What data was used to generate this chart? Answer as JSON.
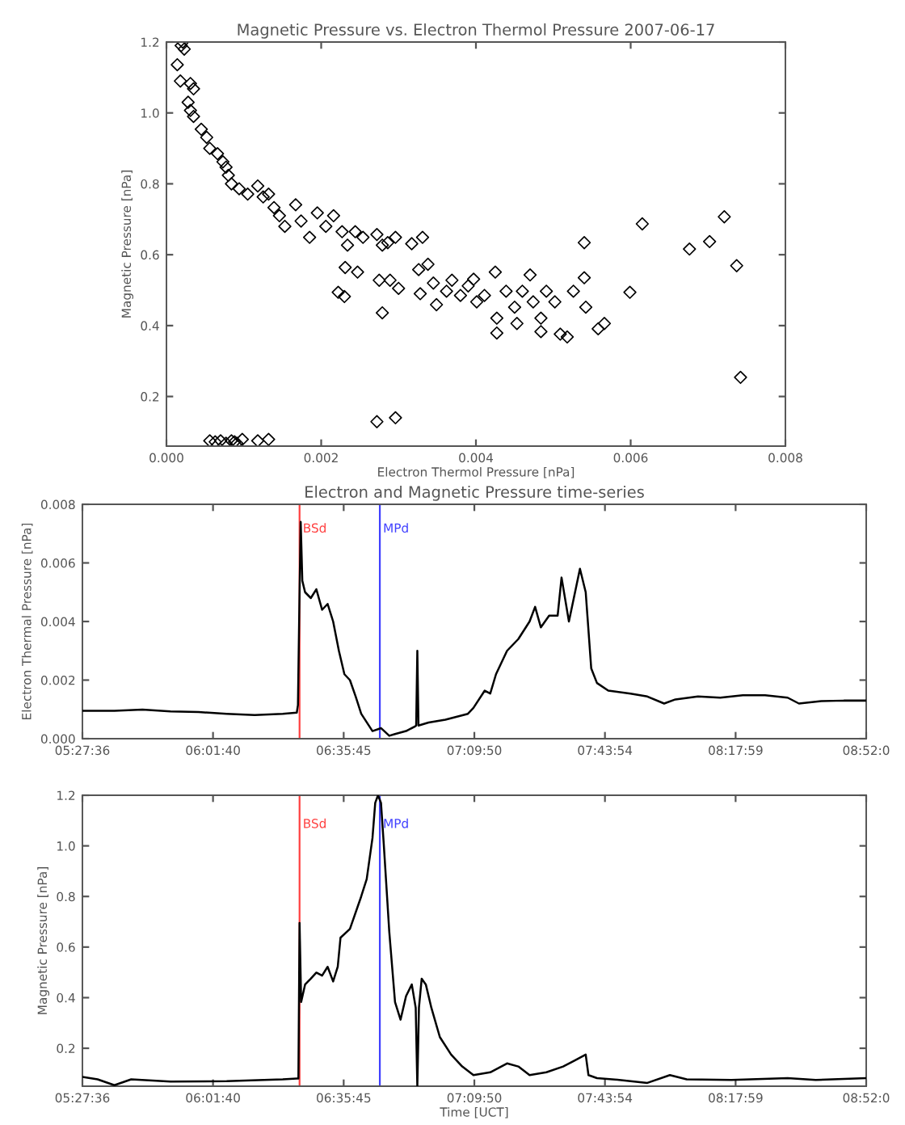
{
  "chart_data": [
    {
      "type": "scatter",
      "title": "Magnetic Pressure vs. Electron Thermol Pressure 2007-06-17",
      "xlabel": "Electron Thermol Pressure [nPa]",
      "ylabel": "Magnetic Pressure [nPa]",
      "marker": "diamond",
      "grid": false,
      "xlim": [
        0,
        0.008
      ],
      "ylim": [
        0.06,
        1.2
      ],
      "xticks": [
        {
          "value": 0,
          "label": "0.000"
        },
        {
          "value": 0.002,
          "label": "0.002"
        },
        {
          "value": 0.004,
          "label": "0.004"
        },
        {
          "value": 0.006,
          "label": "0.006"
        },
        {
          "value": 0.008,
          "label": "0.008"
        }
      ],
      "yticks": [
        0.2,
        0.4,
        0.6,
        0.8,
        {
          "value": 1.0,
          "label": "1.0"
        },
        1.2
      ],
      "series": [
        {
          "color": "#000000",
          "x": [
            0.00021,
            0.00019,
            0.00023,
            0.00014,
            0.00018,
            0.00031,
            0.00035,
            0.00028,
            0.00031,
            0.00035,
            0.00045,
            0.00052,
            0.00056,
            0.00066,
            0.00073,
            0.00077,
            0.0008,
            0.00084,
            0.00094,
            0.00105,
            0.00118,
            0.00125,
            0.00132,
            0.00139,
            0.00146,
            0.00153,
            0.00167,
            0.00174,
            0.00185,
            0.00195,
            0.00206,
            0.00216,
            0.00227,
            0.00234,
            0.00244,
            0.00254,
            0.00272,
            0.00279,
            0.00286,
            0.00296,
            0.00317,
            0.00331,
            0.00222,
            0.0023,
            0.00231,
            0.00247,
            0.00275,
            0.00279,
            0.00289,
            0.003,
            0.00326,
            0.00338,
            0.00328,
            0.00345,
            0.00349,
            0.00362,
            0.00369,
            0.0038,
            0.0039,
            0.00397,
            0.00401,
            0.00411,
            0.00425,
            0.00427,
            0.00427,
            0.00439,
            0.0045,
            0.00453,
            0.0046,
            0.0047,
            0.00474,
            0.00484,
            0.00484,
            0.00491,
            0.00502,
            0.00509,
            0.00518,
            0.00526,
            0.0054,
            0.0054,
            0.00542,
            0.00558,
            0.00566,
            0.00599,
            0.00615,
            0.00676,
            0.00702,
            0.00721,
            0.00737,
            0.00742,
            0.00272,
            0.00296,
            0.0007,
            0.00084,
            0.00098,
            0.00118,
            0.00132,
            0.00056,
            0.00077,
            0.00091,
            0.00063,
            0.00088
          ],
          "values": [
            1.2,
            1.19,
            1.18,
            1.136,
            1.09,
            1.083,
            1.068,
            1.03,
            1.007,
            0.99,
            0.954,
            0.931,
            0.9,
            0.885,
            0.862,
            0.847,
            0.824,
            0.8,
            0.786,
            0.771,
            0.794,
            0.763,
            0.771,
            0.733,
            0.71,
            0.68,
            0.741,
            0.695,
            0.649,
            0.718,
            0.68,
            0.71,
            0.665,
            0.627,
            0.665,
            0.649,
            0.657,
            0.627,
            0.634,
            0.649,
            0.631,
            0.649,
            0.494,
            0.482,
            0.564,
            0.551,
            0.528,
            0.436,
            0.528,
            0.505,
            0.558,
            0.573,
            0.49,
            0.52,
            0.459,
            0.497,
            0.528,
            0.485,
            0.512,
            0.531,
            0.467,
            0.485,
            0.551,
            0.421,
            0.379,
            0.497,
            0.452,
            0.406,
            0.497,
            0.543,
            0.467,
            0.421,
            0.383,
            0.497,
            0.467,
            0.376,
            0.368,
            0.497,
            0.634,
            0.535,
            0.452,
            0.391,
            0.406,
            0.494,
            0.687,
            0.616,
            0.637,
            0.707,
            0.569,
            0.254,
            0.129,
            0.14,
            0.075,
            0.075,
            0.079,
            0.075,
            0.079,
            0.075,
            0.068,
            0.068,
            0.072,
            0.072
          ]
        }
      ]
    },
    {
      "type": "line",
      "title": "Electron and Magnetic Pressure time-series",
      "ylabel": "Electron Thermal Pressure [nPa]",
      "grid": false,
      "marker": "none",
      "line_style": "solid",
      "xlim": [
        5.46,
        8.8675
      ],
      "ylim": [
        0,
        0.008
      ],
      "xticks": [
        {
          "value": 5.46,
          "label": "05:27:36"
        },
        {
          "value": 6.027778,
          "label": "06:01:40"
        },
        {
          "value": 6.595833,
          "label": "06:35:45"
        },
        {
          "value": 7.163889,
          "label": "07:09:50"
        },
        {
          "value": 7.731667,
          "label": "07:43:54"
        },
        {
          "value": 8.299722,
          "label": "08:17:59"
        },
        {
          "value": 8.8675,
          "label": "08:52:0"
        }
      ],
      "yticks": [
        {
          "value": 0,
          "label": "0.000"
        },
        0.002,
        0.004,
        0.006,
        {
          "value": 0.008,
          "label": "0.008"
        }
      ],
      "ref_lines": [
        {
          "axis": "x",
          "value": 6.404,
          "label": "BSd",
          "color": "#ff4040"
        },
        {
          "axis": "x",
          "value": 6.753,
          "label": "MPd",
          "color": "#4040ff"
        }
      ],
      "series": [
        {
          "color": "#000000",
          "x": [
            5.46,
            5.599,
            5.721,
            5.843,
            5.965,
            6.087,
            6.209,
            6.331,
            6.392,
            6.397,
            6.404,
            6.409,
            6.416,
            6.428,
            6.453,
            6.477,
            6.502,
            6.526,
            6.55,
            6.575,
            6.599,
            6.623,
            6.648,
            6.672,
            6.721,
            6.758,
            6.794,
            6.819,
            6.867,
            6.904,
            6.911,
            6.916,
            6.921,
            6.965,
            7.038,
            7.136,
            7.16,
            7.209,
            7.233,
            7.258,
            7.306,
            7.355,
            7.404,
            7.428,
            7.453,
            7.489,
            7.526,
            7.543,
            7.575,
            7.623,
            7.648,
            7.672,
            7.697,
            7.746,
            7.843,
            7.916,
            7.989,
            8.038,
            8.136,
            8.233,
            8.331,
            8.428,
            8.526,
            8.575,
            8.672,
            8.77,
            8.8675
          ],
          "values": [
            0.00095,
            0.00095,
            0.00099,
            0.00093,
            0.00091,
            0.00085,
            0.00081,
            0.00085,
            0.00089,
            0.00115,
            0.005,
            0.0074,
            0.00539,
            0.005,
            0.0048,
            0.0051,
            0.0044,
            0.0046,
            0.004,
            0.003,
            0.0022,
            0.002,
            0.00144,
            0.00085,
            0.00026,
            0.00036,
            0.0001,
            0.00016,
            0.00026,
            0.00041,
            0.00045,
            0.003,
            0.00045,
            0.00055,
            0.00065,
            0.00085,
            0.00105,
            0.00164,
            0.00154,
            0.0022,
            0.003,
            0.0034,
            0.004,
            0.0045,
            0.0038,
            0.0042,
            0.0042,
            0.0055,
            0.004,
            0.0058,
            0.005,
            0.0024,
            0.0019,
            0.00164,
            0.00154,
            0.00144,
            0.0012,
            0.00134,
            0.00144,
            0.0014,
            0.00148,
            0.00148,
            0.0014,
            0.0012,
            0.00128,
            0.0013,
            0.0013
          ]
        }
      ]
    },
    {
      "type": "line",
      "xlabel": "Time [UCT]",
      "ylabel": "Magnetic Pressure [nPa]",
      "grid": false,
      "marker": "none",
      "line_style": "solid",
      "xlim": [
        5.46,
        8.8675
      ],
      "ylim": [
        0.05,
        1.2
      ],
      "xticks": [
        {
          "value": 5.46,
          "label": "05:27:36"
        },
        {
          "value": 6.027778,
          "label": "06:01:40"
        },
        {
          "value": 6.595833,
          "label": "06:35:45"
        },
        {
          "value": 7.163889,
          "label": "07:09:50"
        },
        {
          "value": 7.731667,
          "label": "07:43:54"
        },
        {
          "value": 8.299722,
          "label": "08:17:59"
        },
        {
          "value": 8.8675,
          "label": "08:52:0"
        }
      ],
      "yticks": [
        0.2,
        0.4,
        0.6,
        0.8,
        {
          "value": 1.0,
          "label": "1.0"
        },
        1.2
      ],
      "ref_lines": [
        {
          "axis": "x",
          "value": 6.404,
          "label": "BSd",
          "color": "#ff4040"
        },
        {
          "axis": "x",
          "value": 6.753,
          "label": "MPd",
          "color": "#4040ff"
        }
      ],
      "series": [
        {
          "color": "#000000",
          "x": [
            5.46,
            5.526,
            5.599,
            5.672,
            5.843,
            6.087,
            6.331,
            6.392,
            6.399,
            6.404,
            6.411,
            6.428,
            6.453,
            6.477,
            6.502,
            6.526,
            6.55,
            6.57,
            6.582,
            6.623,
            6.672,
            6.696,
            6.721,
            6.733,
            6.745,
            6.758,
            6.77,
            6.794,
            6.819,
            6.843,
            6.867,
            6.892,
            6.909,
            6.916,
            6.923,
            6.935,
            6.953,
            6.977,
            7.014,
            7.063,
            7.111,
            7.16,
            7.233,
            7.306,
            7.355,
            7.404,
            7.477,
            7.55,
            7.599,
            7.648,
            7.66,
            7.697,
            7.794,
            7.916,
            8.014,
            8.087,
            8.282,
            8.526,
            8.648,
            8.8675
          ],
          "values": [
            0.087,
            0.077,
            0.054,
            0.077,
            0.068,
            0.07,
            0.077,
            0.08,
            0.08,
            0.695,
            0.383,
            0.452,
            0.475,
            0.499,
            0.487,
            0.522,
            0.464,
            0.522,
            0.637,
            0.672,
            0.8,
            0.869,
            1.031,
            1.17,
            1.2,
            1.17,
            1.008,
            0.661,
            0.383,
            0.313,
            0.406,
            0.452,
            0.36,
            0.05,
            0.36,
            0.475,
            0.452,
            0.36,
            0.244,
            0.175,
            0.128,
            0.094,
            0.105,
            0.14,
            0.128,
            0.094,
            0.105,
            0.128,
            0.151,
            0.175,
            0.094,
            0.082,
            0.075,
            0.063,
            0.094,
            0.077,
            0.075,
            0.082,
            0.075,
            0.082
          ]
        }
      ]
    }
  ]
}
